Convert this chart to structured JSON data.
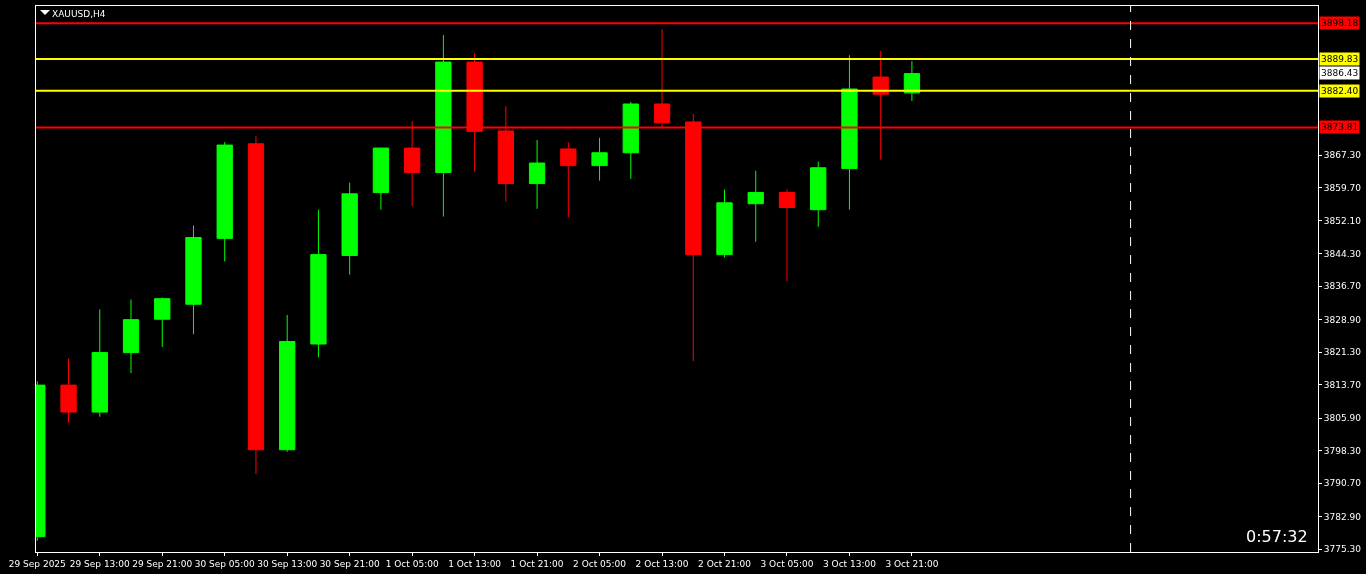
{
  "chart_data": {
    "type": "candlestick",
    "title": "XAUUSD,H4",
    "x": [
      "2025-09-29T05:00",
      "2025-09-29T09:00",
      "2025-09-29T13:00",
      "2025-09-29T17:00",
      "2025-09-29T21:00",
      "2025-09-30T01:00",
      "2025-09-30T05:00",
      "2025-09-30T09:00",
      "2025-09-30T13:00",
      "2025-09-30T17:00",
      "2025-09-30T21:00",
      "2025-10-01T01:00",
      "2025-10-01T05:00",
      "2025-10-01T09:00",
      "2025-10-01T13:00",
      "2025-10-01T17:00",
      "2025-10-01T21:00",
      "2025-10-02T01:00",
      "2025-10-02T05:00",
      "2025-10-02T09:00",
      "2025-10-02T13:00",
      "2025-10-02T17:00",
      "2025-10-02T21:00",
      "2025-10-03T01:00",
      "2025-10-03T05:00",
      "2025-10-03T09:00",
      "2025-10-03T13:00",
      "2025-10-03T17:00",
      "2025-10-03T21:00"
    ],
    "ohlc": [
      [
        3778.2,
        3814.5,
        3777.2,
        3813.6
      ],
      [
        3813.6,
        3819.8,
        3804.8,
        3807.3
      ],
      [
        3807.3,
        3831.3,
        3806.2,
        3821.2
      ],
      [
        3821.2,
        3833.6,
        3816.4,
        3828.9
      ],
      [
        3829.0,
        3834.1,
        3822.5,
        3833.8
      ],
      [
        3832.5,
        3850.9,
        3825.5,
        3848.1
      ],
      [
        3847.9,
        3870.4,
        3842.5,
        3869.7
      ],
      [
        3870.0,
        3871.8,
        3792.8,
        3798.5
      ],
      [
        3798.5,
        3830.0,
        3798.0,
        3823.8
      ],
      [
        3823.2,
        3854.6,
        3820.1,
        3844.1
      ],
      [
        3843.9,
        3860.9,
        3839.4,
        3858.3
      ],
      [
        3858.6,
        3869.0,
        3854.6,
        3869.0
      ],
      [
        3869.0,
        3875.3,
        3855.4,
        3863.3
      ],
      [
        3863.3,
        3895.4,
        3853.0,
        3889.1
      ],
      [
        3889.1,
        3891.2,
        3863.5,
        3872.9
      ],
      [
        3873.0,
        3878.8,
        3856.5,
        3860.7
      ],
      [
        3860.7,
        3870.9,
        3854.8,
        3865.5
      ],
      [
        3868.8,
        3870.4,
        3852.8,
        3864.9
      ],
      [
        3864.9,
        3871.4,
        3861.4,
        3867.9
      ],
      [
        3867.9,
        3879.8,
        3861.8,
        3879.3
      ],
      [
        3879.3,
        3896.8,
        3873.5,
        3874.9
      ],
      [
        3875.1,
        3877.0,
        3819.2,
        3844.1
      ],
      [
        3844.1,
        3859.3,
        3843.4,
        3856.2
      ],
      [
        3856.0,
        3863.7,
        3847.1,
        3858.6
      ],
      [
        3858.6,
        3859.3,
        3837.9,
        3855.1
      ],
      [
        3854.6,
        3865.8,
        3850.6,
        3864.4
      ],
      [
        3864.2,
        3890.7,
        3854.6,
        3882.8
      ],
      [
        3885.6,
        3891.7,
        3866.3,
        3881.6
      ],
      [
        3881.9,
        3889.3,
        3880.0,
        3886.4
      ]
    ],
    "colors": [
      "#00ff00",
      "#ff0000",
      "#00ff00",
      "#00ff00",
      "#00ff00",
      "#00ff00",
      "#00ff00",
      "#ff0000",
      "#00ff00",
      "#00ff00",
      "#00ff00",
      "#00ff00",
      "#ff0000",
      "#00ff00",
      "#ff0000",
      "#ff0000",
      "#00ff00",
      "#ff0000",
      "#00ff00",
      "#00ff00",
      "#ff0000",
      "#ff0000",
      "#00ff00",
      "#00ff00",
      "#ff0000",
      "#00ff00",
      "#00ff00",
      "#ff0000",
      "#00ff00"
    ],
    "xlim": [
      "2025-09-29T04:50",
      "2025-10-06T01:00"
    ],
    "xticks": [
      {
        "value": "2025-09-29T05:00",
        "label": "29 Sep 2025"
      },
      {
        "value": "2025-09-29T13:00",
        "label": "29 Sep 13:00"
      },
      {
        "value": "2025-09-29T21:00",
        "label": "29 Sep 21:00"
      },
      {
        "value": "2025-09-30T05:00",
        "label": "30 Sep 05:00"
      },
      {
        "value": "2025-09-30T13:00",
        "label": "30 Sep 13:00"
      },
      {
        "value": "2025-09-30T21:00",
        "label": "30 Sep 21:00"
      },
      {
        "value": "2025-10-01T05:00",
        "label": "1 Oct 05:00"
      },
      {
        "value": "2025-10-01T13:00",
        "label": "1 Oct 13:00"
      },
      {
        "value": "2025-10-01T21:00",
        "label": "1 Oct 21:00"
      },
      {
        "value": "2025-10-02T05:00",
        "label": "2 Oct 05:00"
      },
      {
        "value": "2025-10-02T13:00",
        "label": "2 Oct 13:00"
      },
      {
        "value": "2025-10-02T21:00",
        "label": "2 Oct 21:00"
      },
      {
        "value": "2025-10-03T05:00",
        "label": "3 Oct 05:00"
      },
      {
        "value": "2025-10-03T13:00",
        "label": "3 Oct 13:00"
      },
      {
        "value": "2025-10-03T21:00",
        "label": "3 Oct 21:00"
      }
    ],
    "ylim": [
      3774.6,
      3902.2
    ],
    "yticks": [
      {
        "value": 3775.3,
        "label": "3775.30"
      },
      {
        "value": 3782.9,
        "label": "3782.90"
      },
      {
        "value": 3790.7,
        "label": "3790.70"
      },
      {
        "value": 3798.3,
        "label": "3798.30"
      },
      {
        "value": 3805.9,
        "label": "3805.90"
      },
      {
        "value": 3813.7,
        "label": "3813.70"
      },
      {
        "value": 3821.3,
        "label": "3821.30"
      },
      {
        "value": 3828.9,
        "label": "3828.90"
      },
      {
        "value": 3836.7,
        "label": "3836.70"
      },
      {
        "value": 3844.3,
        "label": "3844.30"
      },
      {
        "value": 3852.1,
        "label": "3852.10"
      },
      {
        "value": 3859.7,
        "label": "3859.70"
      },
      {
        "value": 3867.3,
        "label": "3867.30"
      }
    ],
    "ref_lines": [
      {
        "axis": "y",
        "value": 3898.18,
        "label": "3898.18",
        "color": "#ff0000"
      },
      {
        "axis": "y",
        "value": 3889.83,
        "label": "3889.83",
        "color": "#ffff00"
      },
      {
        "axis": "y",
        "value": 3882.4,
        "label": "3882.40",
        "color": "#ffff00"
      },
      {
        "axis": "y",
        "value": 3873.81,
        "label": "3873.81",
        "color": "#ff0000"
      },
      {
        "axis": "x",
        "value": "2025-10-05T01:00",
        "color": "#ffffff",
        "line_style": "dashed"
      }
    ],
    "annotations": [
      {
        "text": "3886.43",
        "y": 3886.43
      },
      "0:57:32"
    ],
    "grid": false
  }
}
